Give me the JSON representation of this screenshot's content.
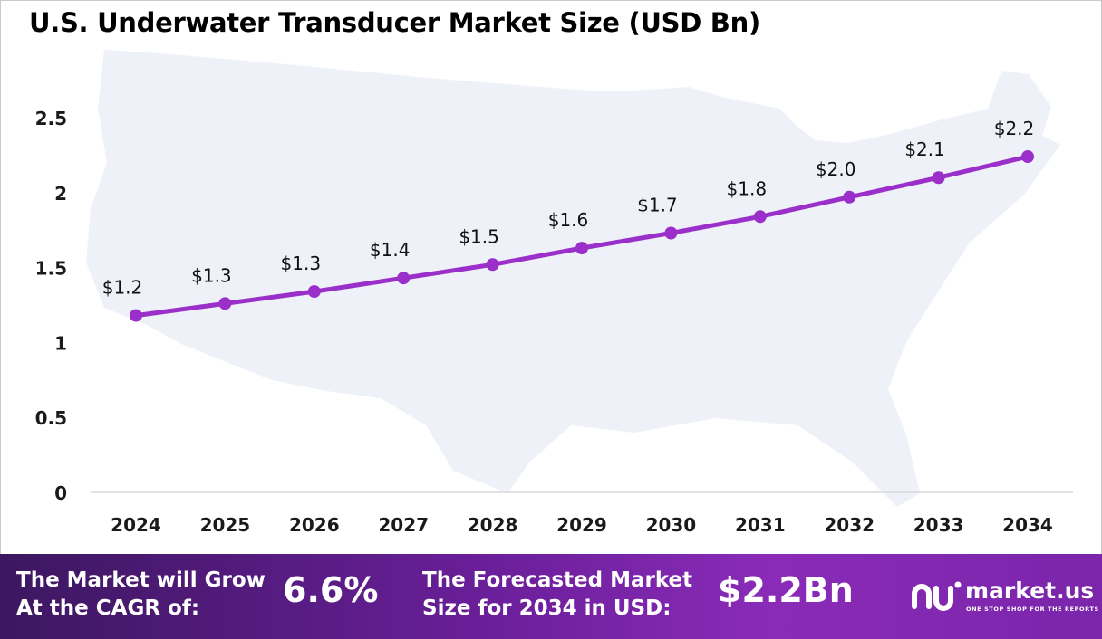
{
  "chart_data": {
    "type": "line",
    "title": "U.S. Underwater Transducer Market Size (USD Bn)",
    "categories": [
      "2024",
      "2025",
      "2026",
      "2027",
      "2028",
      "2029",
      "2030",
      "2031",
      "2032",
      "2033",
      "2034"
    ],
    "series": [
      {
        "values": [
          1.18,
          1.26,
          1.34,
          1.43,
          1.52,
          1.63,
          1.73,
          1.84,
          1.97,
          2.1,
          2.24
        ],
        "labels": [
          "$1.2",
          "$1.3",
          "$1.3",
          "$1.4",
          "$1.5",
          "$1.6",
          "$1.7",
          "$1.8",
          "$2.0",
          "$2.1",
          "$2.2"
        ]
      }
    ],
    "yticks": [
      "0",
      "0.5",
      "1",
      "1.5",
      "2",
      "2.5"
    ],
    "ylim": [
      0,
      2.5
    ],
    "grid": false,
    "legend": "none",
    "colors": {
      "line": "#9b2fc9",
      "marker": "#9b2fc9",
      "map": "#eef1f8"
    }
  },
  "footer": {
    "cagr_label_line1": "The Market will Grow",
    "cagr_label_line2": "At the CAGR of:",
    "cagr_value": "6.6%",
    "forecast_label_line1": "The Forecasted Market",
    "forecast_label_line2": "Size for 2034 in USD:",
    "forecast_value": "$2.2Bn",
    "brand_name": "market.us",
    "brand_tagline": "ONE STOP SHOP FOR THE REPORTS"
  }
}
